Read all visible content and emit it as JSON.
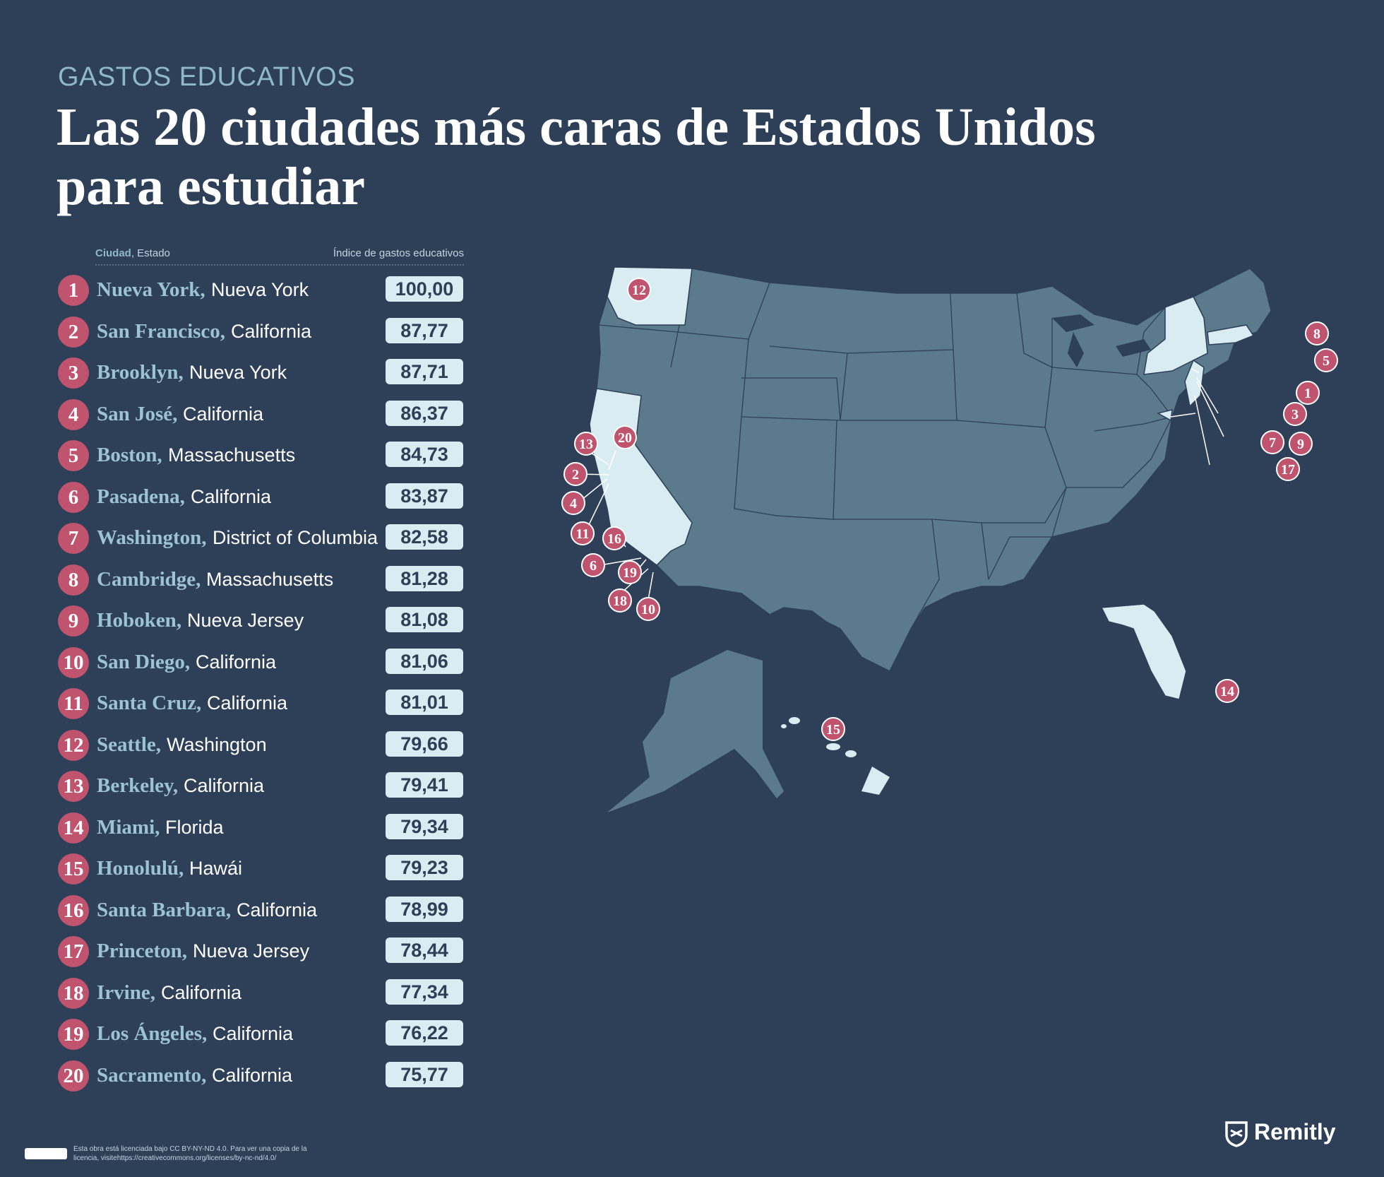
{
  "header": {
    "kicker": "GASTOS EDUCATIVOS",
    "title": "Las 20 ciudades más caras de Estados Unidos para estudiar"
  },
  "table": {
    "col_city_bold": "Ciudad",
    "col_city_rest": ", Estado",
    "col_index": "Índice de gastos educativos",
    "rows": [
      {
        "rank": "1",
        "city": "Nueva York,",
        "state": "Nueva York",
        "score": "100,00"
      },
      {
        "rank": "2",
        "city": "San Francisco,",
        "state": "California",
        "score": "87,77"
      },
      {
        "rank": "3",
        "city": "Brooklyn,",
        "state": "Nueva York",
        "score": "87,71"
      },
      {
        "rank": "4",
        "city": "San José,",
        "state": "California",
        "score": "86,37"
      },
      {
        "rank": "5",
        "city": "Boston,",
        "state": "Massachusetts",
        "score": "84,73"
      },
      {
        "rank": "6",
        "city": "Pasadena,",
        "state": "California",
        "score": "83,87"
      },
      {
        "rank": "7",
        "city": "Washington,",
        "state": "District of Columbia",
        "score": "82,58"
      },
      {
        "rank": "8",
        "city": "Cambridge,",
        "state": "Massachusetts",
        "score": "81,28"
      },
      {
        "rank": "9",
        "city": "Hoboken,",
        "state": "Nueva Jersey",
        "score": "81,08"
      },
      {
        "rank": "10",
        "city": "San Diego,",
        "state": "California",
        "score": "81,06"
      },
      {
        "rank": "11",
        "city": "Santa Cruz,",
        "state": "California",
        "score": "81,01"
      },
      {
        "rank": "12",
        "city": "Seattle,",
        "state": "Washington",
        "score": "79,66"
      },
      {
        "rank": "13",
        "city": "Berkeley,",
        "state": "California",
        "score": "79,41"
      },
      {
        "rank": "14",
        "city": "Miami,",
        "state": "Florida",
        "score": "79,34"
      },
      {
        "rank": "15",
        "city": "Honolulú,",
        "state": "Hawái",
        "score": "79,23"
      },
      {
        "rank": "16",
        "city": "Santa Barbara,",
        "state": "California",
        "score": "78,99"
      },
      {
        "rank": "17",
        "city": "Princeton,",
        "state": "Nueva Jersey",
        "score": "78,44"
      },
      {
        "rank": "18",
        "city": "Irvine,",
        "state": "California",
        "score": "77,34"
      },
      {
        "rank": "19",
        "city": "Los Ángeles,",
        "state": "California",
        "score": "76,22"
      },
      {
        "rank": "20",
        "city": "Sacramento,",
        "state": "California",
        "score": "75,77"
      }
    ]
  },
  "map": {
    "highlight_color": "#d8ecf1",
    "base_color": "#5b7a8c",
    "pin_color": "#c0536d",
    "highlighted_states": [
      "Washington",
      "California",
      "New York",
      "Massachusetts",
      "New Jersey",
      "Florida",
      "Hawaii",
      "District of Columbia"
    ],
    "pins": [
      "12",
      "8",
      "5",
      "1",
      "3",
      "9",
      "7",
      "17",
      "13",
      "20",
      "2",
      "4",
      "11",
      "16",
      "6",
      "19",
      "18",
      "10",
      "14",
      "15"
    ]
  },
  "footer": {
    "license_text": "Esta obra está licenciada bajo CC BY-NY-ND 4.0. Para ver una copia de la licencia, visitehttps://creativecommons.org/licenses/by-nc-nd/4.0/",
    "brand": "Remitly"
  }
}
